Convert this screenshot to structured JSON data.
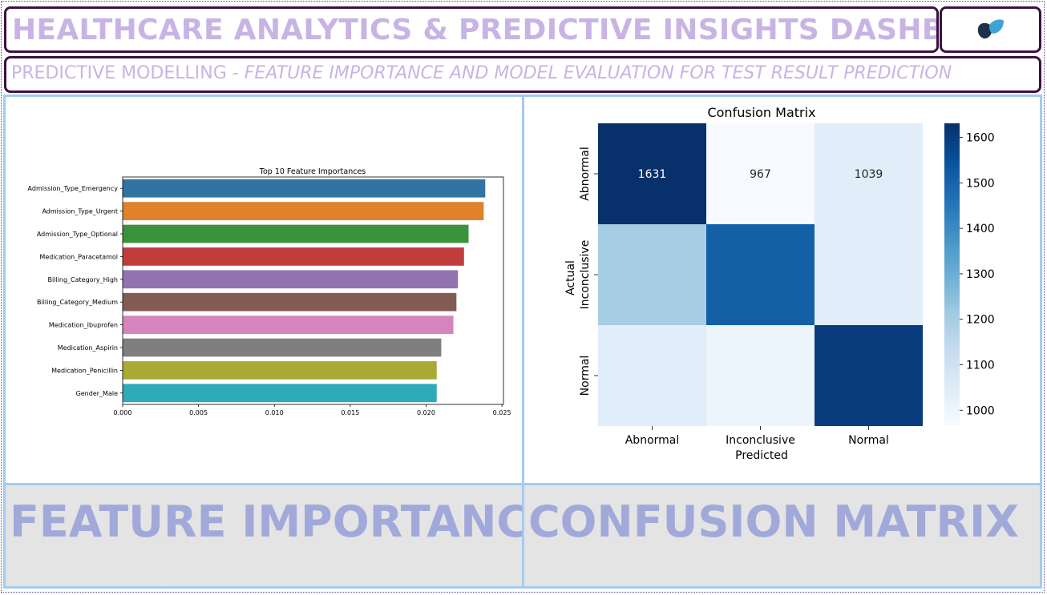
{
  "header": {
    "title": "HEALTHCARE ANALYTICS & PREDICTIVE INSIGHTS DASHBOARD",
    "subtitle_prefix": "PREDICTIVE MODELLING - ",
    "subtitle_italic": "FEATURE IMPORTANCE AND MODEL EVALUATION FOR TEST RESULT PREDICTION",
    "logo_icon": "leaf-logo-icon"
  },
  "captions": {
    "left": "FEATURE IMPORTANCE",
    "right": "CONFUSION MATRIX"
  },
  "chart_data": [
    {
      "type": "bar",
      "orientation": "horizontal",
      "title": "Top 10 Feature Importances",
      "xlabel": "",
      "ylabel": "",
      "categories": [
        "Admission_Type_Emergency",
        "Admission_Type_Urgent",
        "Admission_Type_Optional",
        "Medication_Paracetamol",
        "Billing_Category_High",
        "Billing_Category_Medium",
        "Medication_Ibuprofen",
        "Medication_Aspirin",
        "Medication_Penicillin",
        "Gender_Male"
      ],
      "values": [
        0.0239,
        0.0238,
        0.0228,
        0.0225,
        0.0221,
        0.022,
        0.0218,
        0.021,
        0.0207,
        0.0207
      ],
      "colors": [
        "#3274a1",
        "#e1812c",
        "#3a923a",
        "#c03d3e",
        "#9372b2",
        "#845b53",
        "#d684bd",
        "#7f7f7f",
        "#a9aa35",
        "#2eaab8"
      ],
      "xlim": [
        0,
        0.0251
      ],
      "xticks": [
        "0.000",
        "0.005",
        "0.010",
        "0.015",
        "0.020",
        "0.025"
      ],
      "xtick_values": [
        0,
        0.005,
        0.01,
        0.015,
        0.02,
        0.025
      ]
    },
    {
      "type": "heatmap",
      "title": "Confusion Matrix",
      "xlabel": "Predicted",
      "ylabel": "Actual",
      "x_categories": [
        "Abnormal",
        "Inconclusive",
        "Normal"
      ],
      "y_categories": [
        "Abnormal",
        "Inconclusive",
        "Normal"
      ],
      "values": [
        [
          1631,
          967,
          1039
        ],
        [
          1200,
          1510,
          1040
        ],
        [
          1040,
          1000,
          1600
        ]
      ],
      "annotations": [
        [
          "1631",
          "967",
          "1039"
        ]
      ],
      "colorscale": "Blues",
      "zlim": [
        967,
        1631
      ],
      "colorbar_ticks": [
        "1000",
        "1100",
        "1200",
        "1300",
        "1400",
        "1500",
        "1600"
      ],
      "colorbar_tick_values": [
        1000,
        1100,
        1200,
        1300,
        1400,
        1500,
        1600
      ]
    }
  ]
}
